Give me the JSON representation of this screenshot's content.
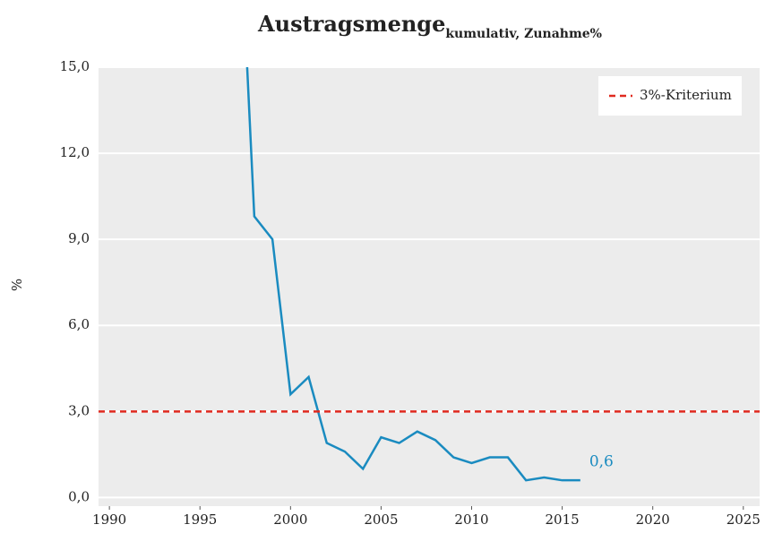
{
  "chart_data": {
    "type": "line",
    "title": "Austragsmenge",
    "title_subscript": "kumulativ, Zunahme%",
    "y_label": "%",
    "x": [
      1997,
      1998,
      1999,
      2000,
      2001,
      2002,
      2003,
      2004,
      2005,
      2006,
      2007,
      2008,
      2009,
      2010,
      2011,
      2012,
      2013,
      2014,
      2015,
      2016
    ],
    "series": [
      {
        "name": "Austragsmenge",
        "color": "#1a8bc0",
        "values": [
          23,
          9.8,
          9.0,
          3.6,
          4.2,
          1.9,
          1.6,
          1.0,
          2.1,
          1.9,
          2.3,
          2.0,
          1.4,
          1.2,
          1.4,
          1.4,
          0.6,
          0.7,
          0.6,
          0.6
        ],
        "value_labels": [
          null,
          null,
          null,
          null,
          null,
          null,
          null,
          null,
          null,
          null,
          null,
          null,
          null,
          null,
          null,
          null,
          null,
          null,
          null,
          "0,6"
        ]
      }
    ],
    "reference_lines": [
      {
        "name": "3%-Kriterium",
        "value": 3,
        "color": "#e02a1f"
      }
    ],
    "xlim": [
      1989.4,
      2025.9
    ],
    "xticks": [
      1990,
      1995,
      2000,
      2005,
      2010,
      2015,
      2020,
      2025
    ],
    "ylim": [
      -0.3,
      15
    ],
    "yticks": [
      {
        "value": 0,
        "label": "0,0"
      },
      {
        "value": 3,
        "label": "3,0"
      },
      {
        "value": 6,
        "label": "6,0"
      },
      {
        "value": 9,
        "label": "9,0"
      },
      {
        "value": 12,
        "label": "12,0"
      },
      {
        "value": 15,
        "label": "15,0"
      }
    ],
    "grid": true,
    "legend": "top-right"
  }
}
